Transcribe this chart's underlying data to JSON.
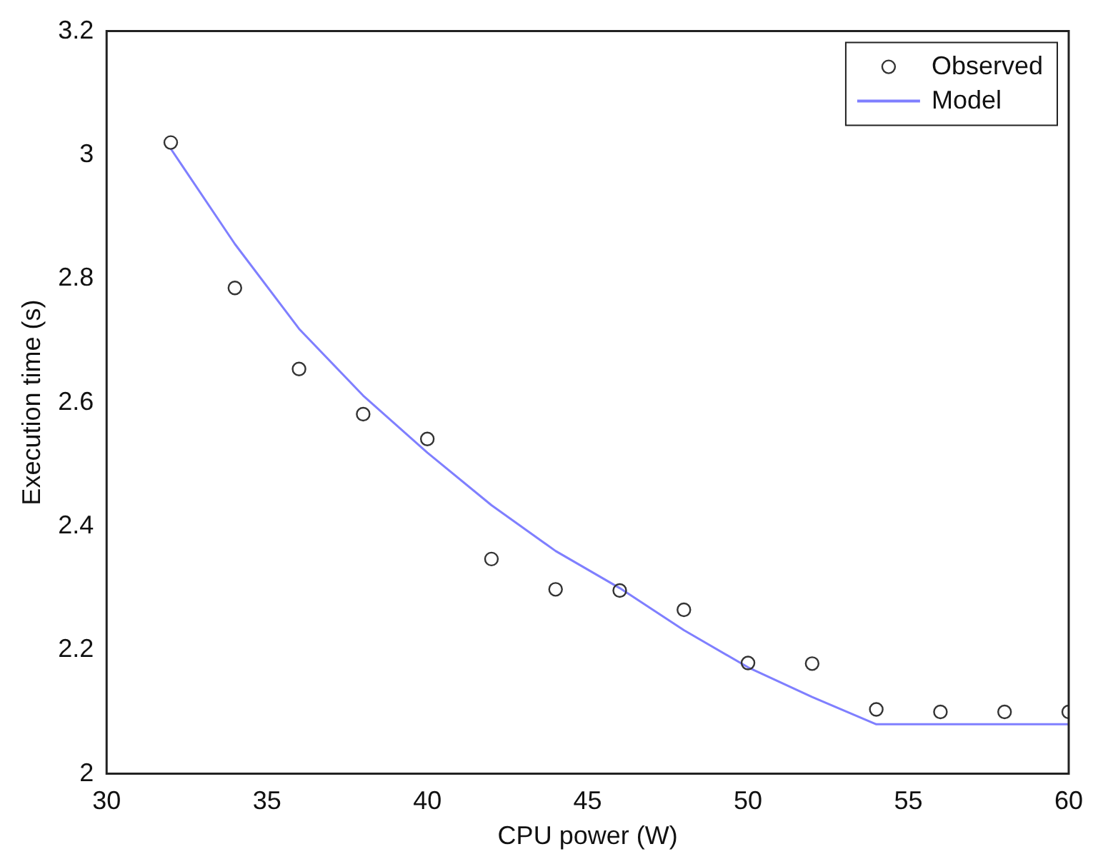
{
  "chart_data": {
    "type": "scatter",
    "xlabel": "CPU power (W)",
    "ylabel": "Execution time (s)",
    "xlim": [
      30,
      60
    ],
    "xticks": [
      30,
      35,
      40,
      45,
      50,
      55,
      60
    ],
    "ylim": [
      2,
      3.2
    ],
    "yticks": [
      2,
      2.2,
      2.4,
      2.6,
      2.8,
      3,
      3.2
    ],
    "grid": false,
    "legend": "top right",
    "series": [
      {
        "name": "Observed",
        "type": "scatter",
        "marker": "circle",
        "color": "#333333",
        "x": [
          32,
          34,
          36,
          38,
          40,
          42,
          44,
          46,
          48,
          50,
          52,
          54,
          56,
          58,
          60
        ],
        "values": [
          3.02,
          2.785,
          2.654,
          2.581,
          2.541,
          2.347,
          2.298,
          2.296,
          2.265,
          2.179,
          2.178,
          2.104,
          2.1,
          2.1,
          2.1
        ]
      },
      {
        "name": "Model",
        "type": "line",
        "marker": "none",
        "line_style": "solid",
        "color": "#7f7fff",
        "x": [
          32,
          34,
          36,
          38,
          40,
          42,
          44,
          46,
          48,
          50,
          52,
          54,
          60
        ],
        "values": [
          3.01,
          2.856,
          2.719,
          2.611,
          2.519,
          2.434,
          2.36,
          2.3,
          2.232,
          2.172,
          2.124,
          2.08,
          2.08
        ]
      }
    ]
  }
}
